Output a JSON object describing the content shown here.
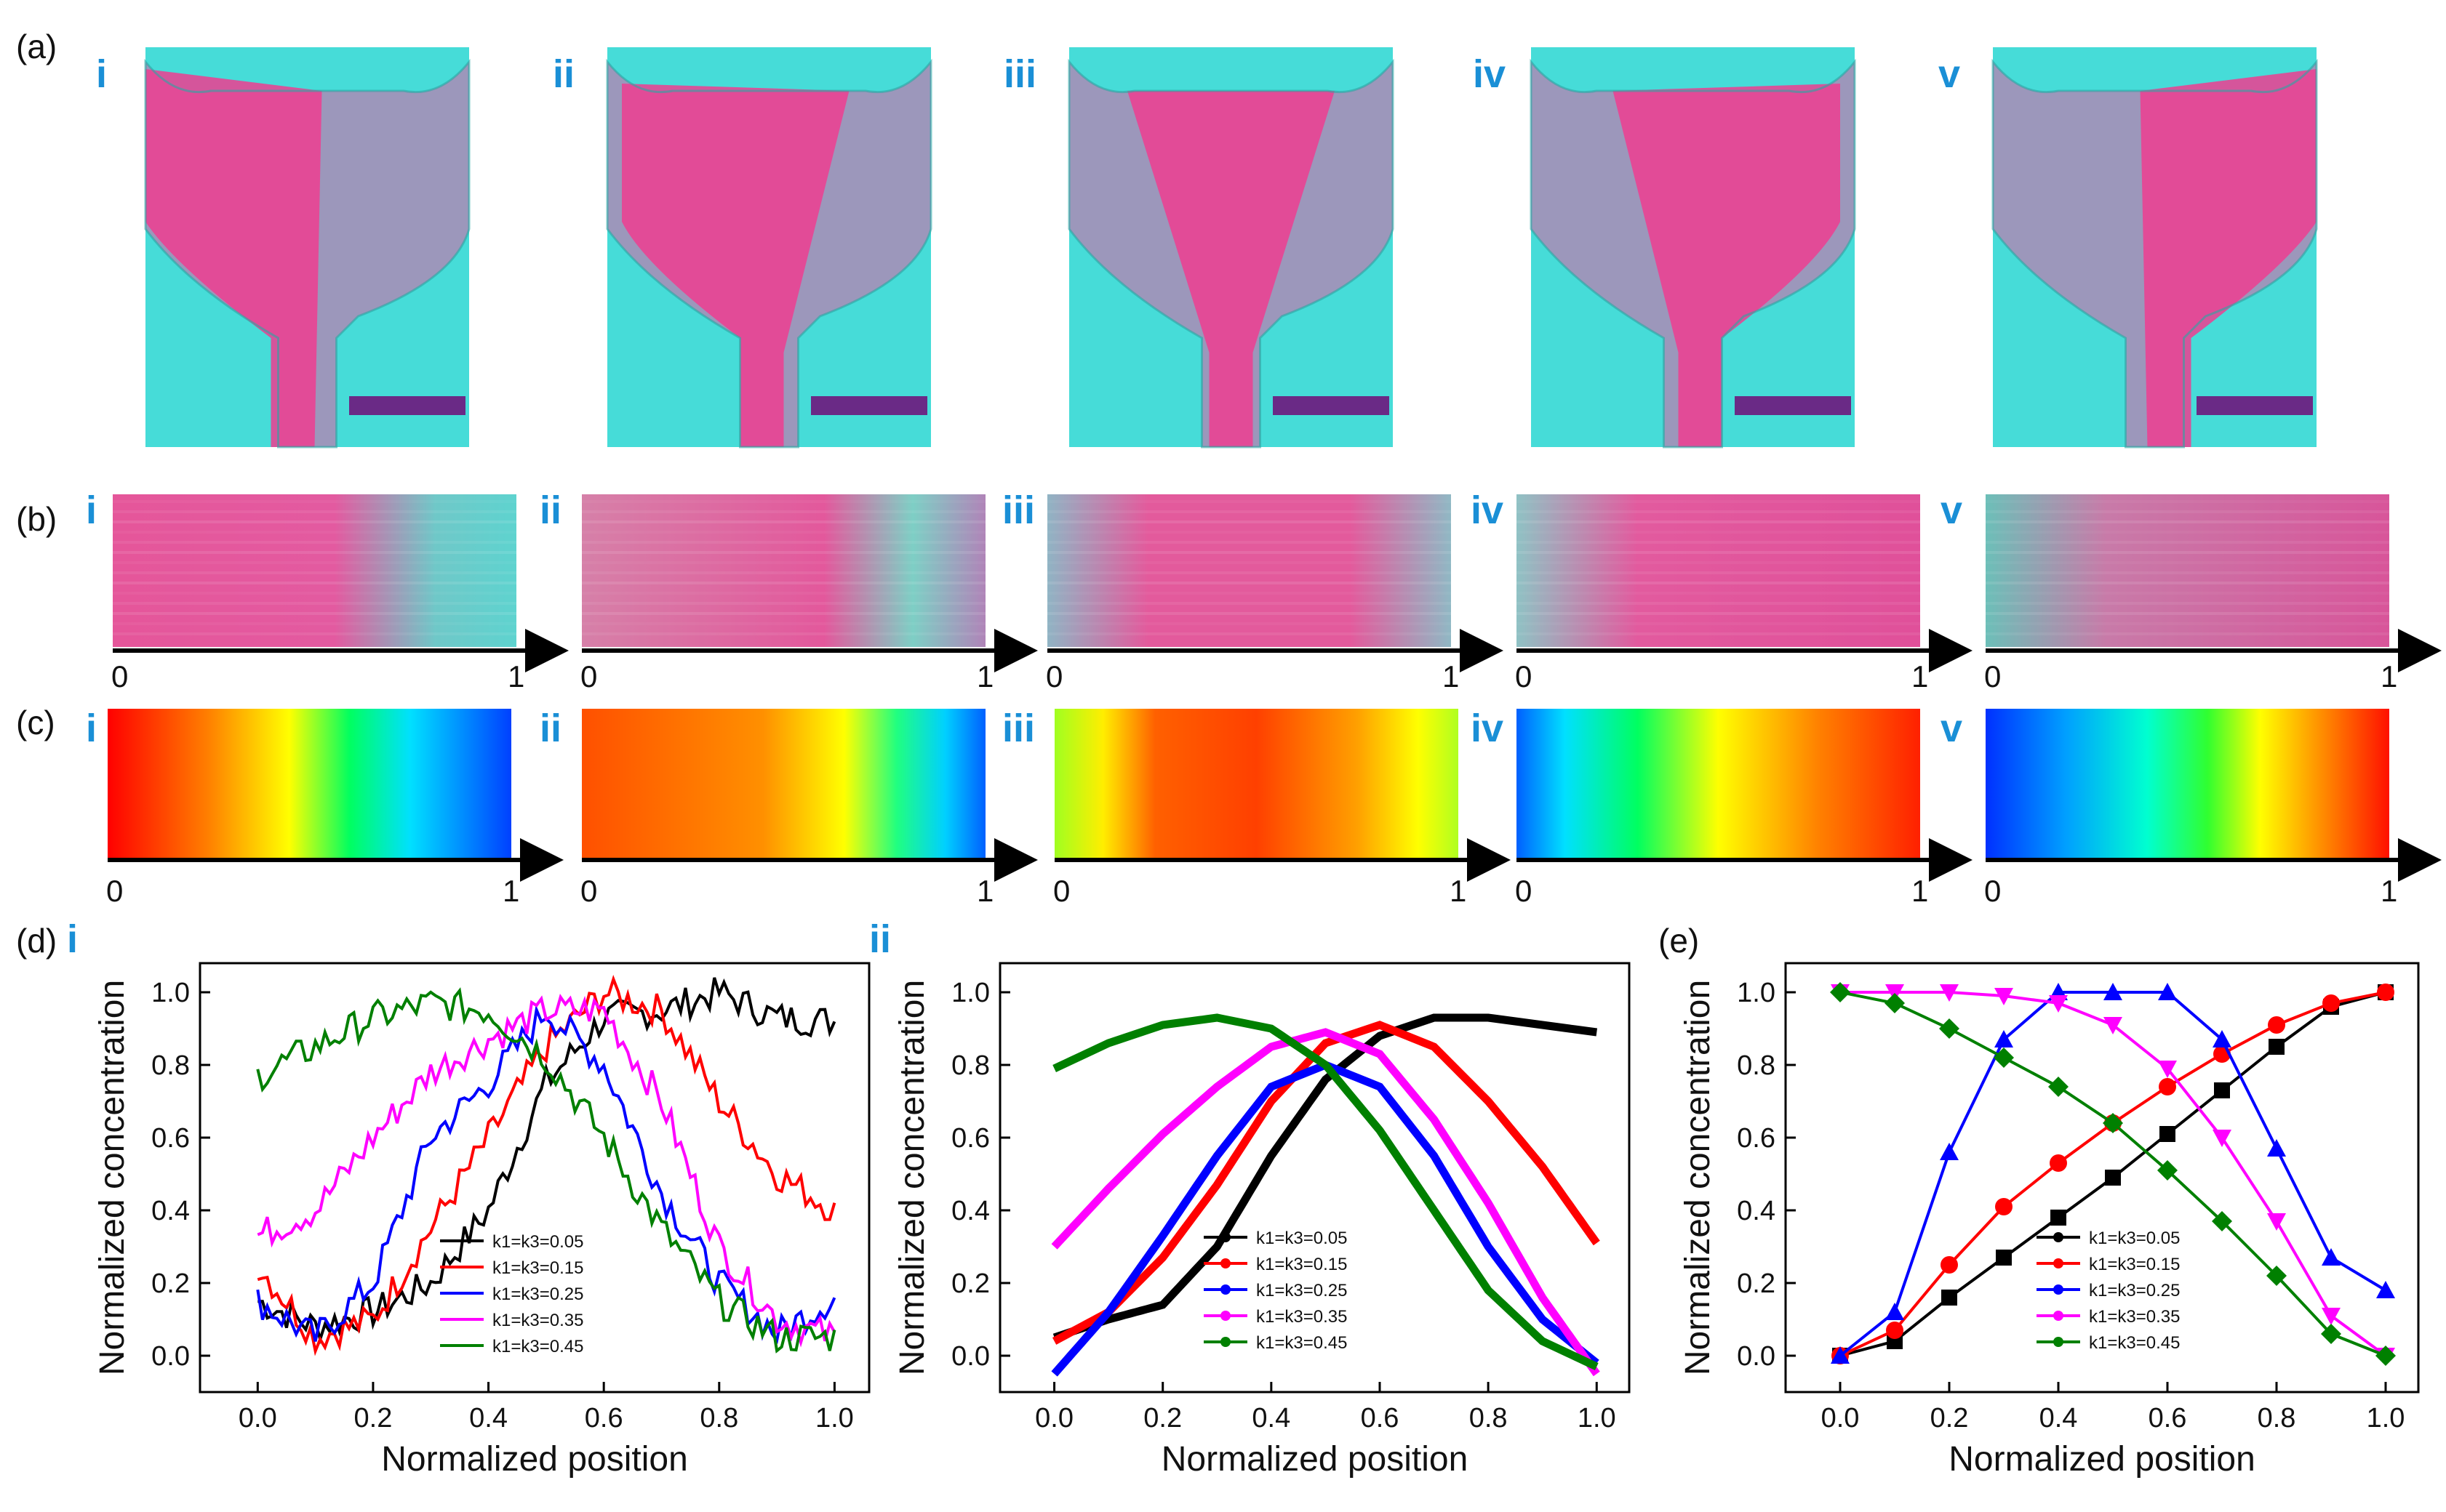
{
  "figure": {
    "panel_labels": [
      "(a)",
      "(b)",
      "(c)",
      "(d)",
      "(e)"
    ],
    "roman_labels": [
      "i",
      "ii",
      "iii",
      "iv",
      "v"
    ],
    "axis_start": "0",
    "axis_end": "1",
    "colors": {
      "magenta": "#ec3f8f",
      "cyan": "#3fe0dc",
      "scalebar": "#6a2a86",
      "roman": "#1a8fd6"
    }
  },
  "chart_data": [
    {
      "id": "d-i",
      "type": "line",
      "title": "",
      "xlabel": "Normalized position",
      "ylabel": "Normalized concentration",
      "xlim": [
        -0.1,
        1.06
      ],
      "ylim": [
        -0.1,
        1.08
      ],
      "xticks": [
        "0.0",
        "0.2",
        "0.4",
        "0.6",
        "0.8",
        "1.0"
      ],
      "yticks": [
        "0.0",
        "0.2",
        "0.4",
        "0.6",
        "0.8",
        "1.0"
      ],
      "noisy": true,
      "series": [
        {
          "name": "k1=k3=0.05",
          "color": "#000000",
          "x": [
            0,
            0.1,
            0.2,
            0.3,
            0.4,
            0.5,
            0.6,
            0.7,
            0.8,
            0.9,
            1.0
          ],
          "y": [
            0.15,
            0.08,
            0.12,
            0.2,
            0.4,
            0.75,
            0.93,
            0.95,
            1.0,
            0.93,
            0.92
          ]
        },
        {
          "name": "k1=k3=0.15",
          "color": "#ff0000",
          "x": [
            0,
            0.1,
            0.2,
            0.3,
            0.4,
            0.5,
            0.6,
            0.7,
            0.8,
            0.9,
            1.0
          ],
          "y": [
            0.25,
            0.05,
            0.1,
            0.35,
            0.6,
            0.85,
            1.0,
            0.95,
            0.7,
            0.5,
            0.4
          ]
        },
        {
          "name": "k1=k3=0.25",
          "color": "#0000ff",
          "x": [
            0,
            0.1,
            0.2,
            0.3,
            0.4,
            0.5,
            0.6,
            0.7,
            0.8,
            0.9,
            1.0
          ],
          "y": [
            0.15,
            0.05,
            0.2,
            0.6,
            0.75,
            0.95,
            0.8,
            0.45,
            0.2,
            0.06,
            0.16
          ]
        },
        {
          "name": "k1=k3=0.35",
          "color": "#ff00ff",
          "x": [
            0,
            0.1,
            0.2,
            0.3,
            0.4,
            0.5,
            0.6,
            0.7,
            0.8,
            0.9,
            1.0
          ],
          "y": [
            0.33,
            0.4,
            0.6,
            0.78,
            0.87,
            0.95,
            0.95,
            0.7,
            0.3,
            0.1,
            0.05
          ]
        },
        {
          "name": "k1=k3=0.45",
          "color": "#008000",
          "x": [
            0,
            0.1,
            0.2,
            0.3,
            0.4,
            0.5,
            0.6,
            0.7,
            0.8,
            0.9,
            1.0
          ],
          "y": [
            0.77,
            0.85,
            0.93,
            0.97,
            0.95,
            0.82,
            0.6,
            0.35,
            0.15,
            0.05,
            0.05
          ]
        }
      ]
    },
    {
      "id": "d-ii",
      "type": "line",
      "title": "",
      "xlabel": "Normalized position",
      "ylabel": "Normalized concentration",
      "xlim": [
        -0.1,
        1.06
      ],
      "ylim": [
        -0.1,
        1.08
      ],
      "xticks": [
        "0.0",
        "0.2",
        "0.4",
        "0.6",
        "0.8",
        "1.0"
      ],
      "yticks": [
        "0.0",
        "0.2",
        "0.4",
        "0.6",
        "0.8",
        "1.0"
      ],
      "noisy": false,
      "series": [
        {
          "name": "k1=k3=0.05",
          "color": "#000000",
          "x": [
            0,
            0.1,
            0.2,
            0.3,
            0.4,
            0.5,
            0.6,
            0.7,
            0.8,
            0.9,
            1.0
          ],
          "y": [
            0.05,
            0.1,
            0.14,
            0.3,
            0.55,
            0.76,
            0.88,
            0.93,
            0.93,
            0.91,
            0.89
          ]
        },
        {
          "name": "k1=k3=0.15",
          "color": "#ff0000",
          "x": [
            0,
            0.1,
            0.2,
            0.3,
            0.4,
            0.5,
            0.6,
            0.7,
            0.8,
            0.9,
            1.0
          ],
          "y": [
            0.04,
            0.12,
            0.27,
            0.47,
            0.7,
            0.86,
            0.91,
            0.85,
            0.7,
            0.52,
            0.31
          ]
        },
        {
          "name": "k1=k3=0.25",
          "color": "#0000ff",
          "x": [
            0,
            0.1,
            0.2,
            0.3,
            0.4,
            0.5,
            0.6,
            0.7,
            0.8,
            0.9,
            1.0
          ],
          "y": [
            -0.05,
            0.12,
            0.33,
            0.55,
            0.74,
            0.8,
            0.74,
            0.55,
            0.3,
            0.1,
            -0.02
          ]
        },
        {
          "name": "k1=k3=0.35",
          "color": "#ff00ff",
          "x": [
            0,
            0.1,
            0.2,
            0.3,
            0.4,
            0.5,
            0.6,
            0.7,
            0.8,
            0.9,
            1.0
          ],
          "y": [
            0.3,
            0.46,
            0.61,
            0.74,
            0.85,
            0.89,
            0.83,
            0.65,
            0.42,
            0.16,
            -0.05
          ]
        },
        {
          "name": "k1=k3=0.45",
          "color": "#008000",
          "x": [
            0,
            0.1,
            0.2,
            0.3,
            0.4,
            0.5,
            0.6,
            0.7,
            0.8,
            0.9,
            1.0
          ],
          "y": [
            0.79,
            0.86,
            0.91,
            0.93,
            0.9,
            0.8,
            0.62,
            0.4,
            0.18,
            0.04,
            -0.03
          ]
        }
      ]
    },
    {
      "id": "e",
      "type": "line",
      "title": "",
      "xlabel": "Normalized position",
      "ylabel": "Normalized concentration",
      "xlim": [
        -0.1,
        1.06
      ],
      "ylim": [
        -0.1,
        1.08
      ],
      "xticks": [
        "0.0",
        "0.2",
        "0.4",
        "0.6",
        "0.8",
        "1.0"
      ],
      "yticks": [
        "0.0",
        "0.2",
        "0.4",
        "0.6",
        "0.8",
        "1.0"
      ],
      "noisy": false,
      "series": [
        {
          "name": "k1=k3=0.05",
          "color": "#000000",
          "marker": "square",
          "x": [
            0,
            0.1,
            0.2,
            0.3,
            0.4,
            0.5,
            0.6,
            0.7,
            0.8,
            0.9,
            1.0
          ],
          "y": [
            0,
            0.04,
            0.16,
            0.27,
            0.38,
            0.49,
            0.61,
            0.73,
            0.85,
            0.96,
            1.0
          ]
        },
        {
          "name": "k1=k3=0.15",
          "color": "#ff0000",
          "marker": "circle",
          "x": [
            0,
            0.1,
            0.2,
            0.3,
            0.4,
            0.5,
            0.6,
            0.7,
            0.8,
            0.9,
            1.0
          ],
          "y": [
            0,
            0.07,
            0.25,
            0.41,
            0.53,
            0.64,
            0.74,
            0.83,
            0.91,
            0.97,
            1.0
          ]
        },
        {
          "name": "k1=k3=0.25",
          "color": "#0000ff",
          "marker": "triangle-up",
          "x": [
            0,
            0.1,
            0.2,
            0.3,
            0.4,
            0.5,
            0.6,
            0.7,
            0.8,
            0.9,
            1.0
          ],
          "y": [
            0,
            0.12,
            0.56,
            0.87,
            1.0,
            1.0,
            1.0,
            0.87,
            0.57,
            0.27,
            0.18
          ]
        },
        {
          "name": "k1=k3=0.35",
          "color": "#ff00ff",
          "marker": "triangle-down",
          "x": [
            0,
            0.1,
            0.2,
            0.3,
            0.4,
            0.5,
            0.6,
            0.7,
            0.8,
            0.9,
            1.0
          ],
          "y": [
            1.0,
            1.0,
            1.0,
            0.99,
            0.97,
            0.91,
            0.79,
            0.6,
            0.37,
            0.11,
            0
          ]
        },
        {
          "name": "k1=k3=0.45",
          "color": "#008000",
          "marker": "diamond",
          "x": [
            0,
            0.1,
            0.2,
            0.3,
            0.4,
            0.5,
            0.6,
            0.7,
            0.8,
            0.9,
            1.0
          ],
          "y": [
            1.0,
            0.97,
            0.9,
            0.82,
            0.74,
            0.64,
            0.51,
            0.37,
            0.22,
            0.06,
            0
          ]
        }
      ]
    }
  ]
}
